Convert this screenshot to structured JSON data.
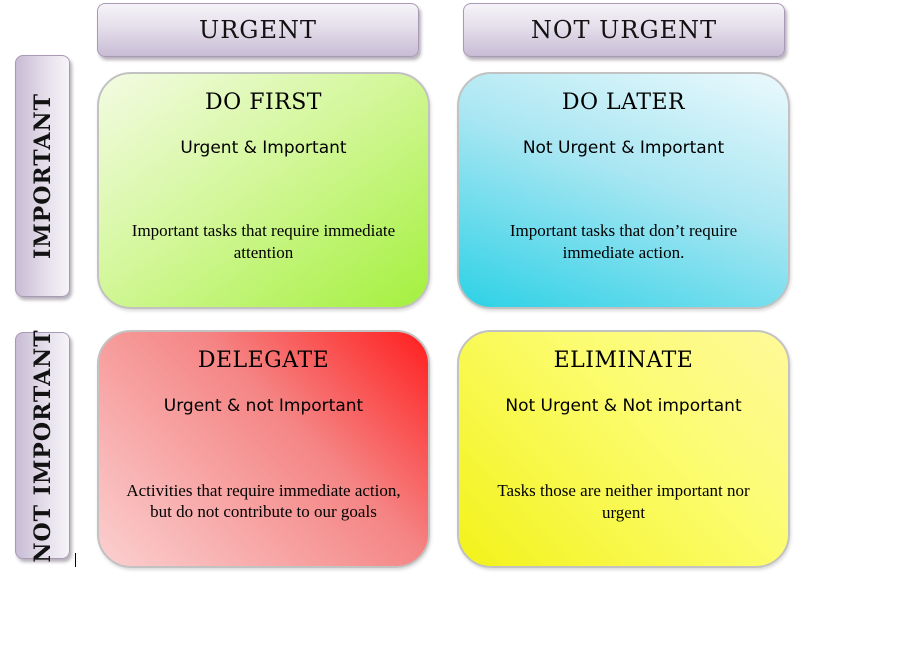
{
  "columns": {
    "urgent": "URGENT",
    "not_urgent": "NOT URGENT"
  },
  "rows": {
    "important": "IMPORTANT",
    "not_important": "NOT IMPORTANT"
  },
  "quadrants": {
    "do_first": {
      "title": "DO FIRST",
      "subtitle": "Urgent & Important",
      "description": "Important tasks that require immediate attention",
      "color": "#a4f03e"
    },
    "do_later": {
      "title": "DO LATER",
      "subtitle": "Not Urgent & Important",
      "description": "Important tasks that don’t require immediate action.",
      "color": "#2dd1e6"
    },
    "delegate": {
      "title": "DELEGATE",
      "subtitle": "Urgent & not Important",
      "description": "Activities that require immediate action, but do not contribute to our goals",
      "color": "#ff1e1e"
    },
    "eliminate": {
      "title": "ELIMINATE",
      "subtitle": "Not Urgent & Not important",
      "description": "Tasks those are neither important nor urgent",
      "color": "#f2f21a"
    }
  }
}
